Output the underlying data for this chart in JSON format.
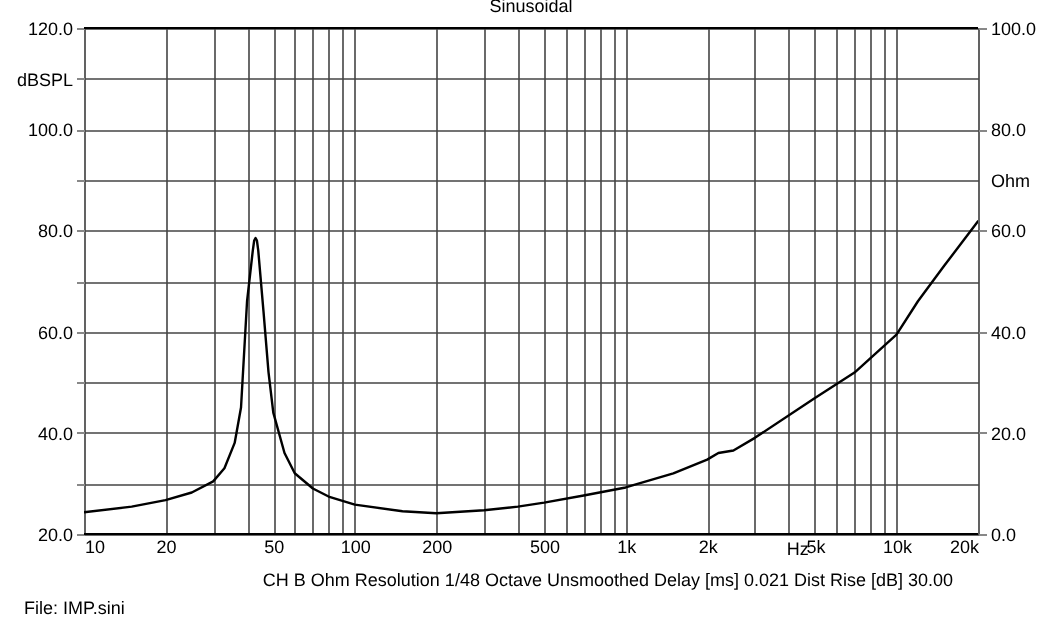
{
  "chart_data": {
    "type": "line",
    "title": "Sinusoidal",
    "xlabel": "Hz",
    "ylabel": "dBSPL",
    "y2label": "Ohm",
    "log": "x",
    "grid": true,
    "marker": "none",
    "line_style": "solid",
    "xlim": [
      10,
      20000
    ],
    "xticks": [
      {
        "value": 10,
        "label": "10"
      },
      {
        "value": 20,
        "label": "20"
      },
      {
        "value": 30,
        "label": null
      },
      {
        "value": 40,
        "label": null
      },
      {
        "value": 50,
        "label": "50"
      },
      {
        "value": 60,
        "label": null
      },
      {
        "value": 70,
        "label": null
      },
      {
        "value": 80,
        "label": null
      },
      {
        "value": 90,
        "label": null
      },
      {
        "value": 100,
        "label": "100"
      },
      {
        "value": 200,
        "label": "200"
      },
      {
        "value": 300,
        "label": null
      },
      {
        "value": 400,
        "label": null
      },
      {
        "value": 500,
        "label": "500"
      },
      {
        "value": 600,
        "label": null
      },
      {
        "value": 700,
        "label": null
      },
      {
        "value": 800,
        "label": null
      },
      {
        "value": 900,
        "label": null
      },
      {
        "value": 1000,
        "label": "1k"
      },
      {
        "value": 2000,
        "label": "2k"
      },
      {
        "value": 3000,
        "label": null
      },
      {
        "value": 4000,
        "label": null
      },
      {
        "value": 5000,
        "label": "5k"
      },
      {
        "value": 6000,
        "label": null
      },
      {
        "value": 7000,
        "label": null
      },
      {
        "value": 8000,
        "label": null
      },
      {
        "value": 9000,
        "label": null
      },
      {
        "value": 10000,
        "label": "10k"
      },
      {
        "value": 20000,
        "label": "20k"
      }
    ],
    "ylim": [
      20,
      120
    ],
    "yticks": [
      {
        "value": 20,
        "label": "20.0"
      },
      {
        "value": 30,
        "label": null
      },
      {
        "value": 40,
        "label": "40.0"
      },
      {
        "value": 50,
        "label": null
      },
      {
        "value": 60,
        "label": "60.0"
      },
      {
        "value": 70,
        "label": null
      },
      {
        "value": 80,
        "label": "80.0"
      },
      {
        "value": 90,
        "label": null
      },
      {
        "value": 100,
        "label": "100.0"
      },
      {
        "value": 110,
        "label": null
      },
      {
        "value": 120,
        "label": "120.0"
      }
    ],
    "y2lim": [
      0,
      100
    ],
    "y2ticks": [
      {
        "value": 0,
        "label": "0.0"
      },
      {
        "value": 20,
        "label": "20.0"
      },
      {
        "value": 40,
        "label": "40.0"
      },
      {
        "value": 60,
        "label": "60.0"
      },
      {
        "value": 80,
        "label": "80.0"
      },
      {
        "value": 100,
        "label": "100.0"
      }
    ],
    "series": [
      {
        "color": "#000000",
        "axis": "y2",
        "x": [
          10,
          15,
          20,
          25,
          30,
          33,
          36,
          38,
          40,
          42,
          42.5,
          43,
          43.5,
          44,
          46,
          48,
          50,
          55,
          60,
          70,
          80,
          100,
          150,
          200,
          300,
          400,
          500,
          700,
          1000,
          1500,
          2000,
          2200,
          2500,
          3000,
          5000,
          7000,
          10000,
          12000,
          15000,
          20000
        ],
        "values": [
          4.3,
          5.4,
          6.7,
          8.2,
          10.4,
          13,
          18,
          25,
          46,
          56,
          58,
          58.5,
          58,
          56,
          44,
          32,
          24,
          16,
          12,
          9,
          7.4,
          5.8,
          4.5,
          4.1,
          4.7,
          5.4,
          6.2,
          7.6,
          9.2,
          12,
          14.7,
          16,
          16.5,
          19,
          26.9,
          31.9,
          39.4,
          46,
          53,
          61.8
        ]
      }
    ],
    "annotations": [
      "CH B  Ohm  Resolution 1/48 Octave  Unsmoothed  Delay [ms] 0.021  Dist Rise [dB] 30.00",
      "File: IMP.sini"
    ]
  }
}
